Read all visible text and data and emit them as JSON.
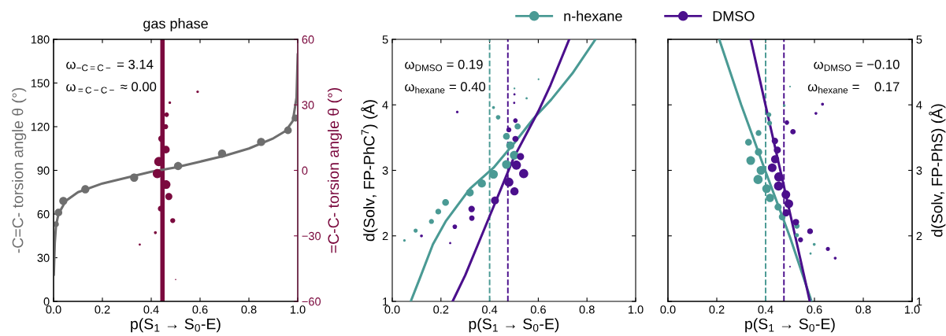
{
  "chart_data": [
    {
      "type": "bubble",
      "title": "gas phase",
      "xlabel": "p(S$_{1}$ → S$_{0}$-E)",
      "ylabel": "-C=C- torsion angle θ (°)",
      "y2label": "=C-C- torsion angle θ (°)",
      "annotations": [
        "ω$_{−C=C−}$ = 3.14",
        "ω$_{=C−C−}$ ≈ 0.00"
      ],
      "xlim": [
        0,
        1
      ],
      "xticks": [
        {
          "value": 0,
          "label": "0.0"
        },
        {
          "value": 0.2,
          "label": "0.2"
        },
        {
          "value": 0.4,
          "label": "0.4"
        },
        {
          "value": 0.6,
          "label": "0.6"
        },
        {
          "value": 0.8,
          "label": "0.8"
        },
        {
          "value": 1,
          "label": "1.0"
        }
      ],
      "ylim": [
        0,
        180
      ],
      "yticks": [
        0,
        30,
        60,
        90,
        120,
        150,
        180
      ],
      "y2lim": [
        -60,
        60
      ],
      "y2ticks": [
        {
          "value": -60,
          "label": "−60"
        },
        {
          "value": -30,
          "label": "−30"
        },
        0,
        30,
        60
      ],
      "ref_lines": [
        {
          "axis": "x",
          "value": 0.446,
          "color": "#7b0a3e",
          "line_style": "solid"
        }
      ],
      "series": [
        {
          "type": "line",
          "color": "#6e6e6e",
          "x": [
            0.001,
            0.005,
            0.01,
            0.02,
            0.05,
            0.1,
            0.2,
            0.3,
            0.4,
            0.5,
            0.6,
            0.7,
            0.8,
            0.9,
            0.95,
            0.98,
            0.995,
            1.0
          ],
          "values": [
            18,
            40,
            52,
            60,
            69,
            75,
            81,
            85,
            89,
            92,
            96,
            100,
            105,
            112,
            117,
            124,
            140,
            170
          ]
        },
        {
          "color": "#6e6e6e",
          "x": [
            0.01,
            0.02,
            0.04,
            0.13,
            0.33,
            0.51,
            0.69,
            0.85,
            0.96,
            0.99
          ],
          "values": [
            53,
            61,
            69,
            77,
            85,
            93,
            101.5,
            109.5,
            117.5,
            126
          ],
          "sizes": [
            0.4,
            0.7,
            0.8,
            0.8,
            0.8,
            0.8,
            0.8,
            0.8,
            0.7,
            0.6
          ]
        },
        {
          "axis": "y2",
          "color": "#7b0a3e",
          "x": [
            0.59,
            0.476,
            0.463,
            0.459,
            0.442,
            0.46,
            0.431,
            0.425,
            0.461,
            0.472,
            0.439,
            0.488,
            0.417,
            0.353,
            0.5
          ],
          "values": [
            36,
            31,
            25.5,
            20,
            14.5,
            9.5,
            4,
            -1.5,
            -6.5,
            -12,
            -17.5,
            -23,
            -28.5,
            -34,
            -50
          ],
          "sizes": [
            0.08,
            0.08,
            0.25,
            0.3,
            0.5,
            0.7,
            1,
            1,
            0.9,
            0.6,
            0.4,
            0.3,
            0.1,
            0.06,
            0.02
          ]
        }
      ]
    },
    {
      "type": "bubble",
      "xlabel": "p(S$_{1}$ → S$_{0}$-E)",
      "ylabel": "d(Solv, FP-PhC$^{7}$) (Å)",
      "annotations": [
        "ω$_{DMSO}$ = 0.19",
        "ω$_{hexane}$ = 0.40"
      ],
      "legend": "top",
      "xlim": [
        0,
        1
      ],
      "xticks": [
        {
          "value": 0,
          "label": "0.0"
        },
        {
          "value": 0.2,
          "label": "0.2"
        },
        {
          "value": 0.4,
          "label": "0.4"
        },
        {
          "value": 0.6,
          "label": "0.6"
        },
        {
          "value": 0.8,
          "label": "0.8"
        },
        {
          "value": 1,
          "label": "1.0"
        }
      ],
      "ylim": [
        1,
        5
      ],
      "yticks": [
        1,
        2,
        3,
        4,
        5
      ],
      "ref_lines": [
        {
          "axis": "x",
          "value": 0.4,
          "color": "#4a9a94",
          "line_style": "dashed"
        },
        {
          "axis": "x",
          "value": 0.475,
          "color": "#4b0f8c",
          "line_style": "dashed"
        }
      ],
      "series": [
        {
          "type": "line",
          "color": "#4a9a94",
          "x": [
            0.076,
            0.113,
            0.167,
            0.221,
            0.319,
            0.416,
            0.502,
            0.578,
            0.653,
            0.74,
            0.835
          ],
          "values": [
            1,
            1.35,
            1.87,
            2.23,
            2.72,
            3.04,
            3.42,
            3.78,
            4.08,
            4.48,
            5
          ]
        },
        {
          "type": "line",
          "color": "#4b0f8c",
          "x": [
            0.248,
            0.3,
            0.35,
            0.4,
            0.45,
            0.5,
            0.55,
            0.6,
            0.65,
            0.727
          ],
          "values": [
            1,
            1.4,
            1.85,
            2.3,
            2.75,
            3.2,
            3.55,
            3.9,
            4.3,
            5
          ]
        },
        {
          "name": "n-hexane",
          "color": "#4a9a94",
          "x": [
            0.05,
            0.096,
            0.161,
            0.189,
            0.219,
            0.319,
            0.368,
            0.416,
            0.469,
            0.501,
            0.485,
            0.469,
            0.515,
            0.435,
            0.416,
            0.552,
            0.502,
            0.601
          ],
          "values": [
            1.93,
            2.08,
            2.22,
            2.37,
            2.51,
            2.66,
            2.8,
            2.94,
            3.09,
            3.23,
            3.38,
            3.52,
            3.67,
            3.81,
            3.96,
            4.1,
            4.25,
            4.39
          ],
          "sizes": [
            0.08,
            0.2,
            0.3,
            0.4,
            0.55,
            0.7,
            0.8,
            0.9,
            0.9,
            0.9,
            0.8,
            0.55,
            0.45,
            0.25,
            0.1,
            0.06,
            0.04,
            0.04
          ]
        },
        {
          "name": "DMSO",
          "color": "#4b0f8c",
          "x": [
            0.12,
            0.238,
            0.257,
            0.327,
            0.326,
            0.422,
            0.502,
            0.479,
            0.54,
            0.51,
            0.527,
            0.506,
            0.479,
            0.506,
            0.501,
            0.502,
            0.267
          ],
          "values": [
            2.0,
            1.89,
            2.14,
            2.27,
            2.41,
            2.54,
            2.68,
            2.82,
            2.95,
            3.08,
            3.21,
            3.48,
            3.62,
            3.76,
            4.03,
            4.16,
            3.89
          ],
          "sizes": [
            0.1,
            0.06,
            0.25,
            0.35,
            0.5,
            0.75,
            0.8,
            1,
            1,
            1,
            0.6,
            0.45,
            0.3,
            0.25,
            0.06,
            0.06,
            0.08
          ]
        }
      ]
    },
    {
      "type": "bubble",
      "xlabel": "p(S$_{1}$ → S$_{0}$-E)",
      "y2label": "d(Solv, FP-PhS) (Å)",
      "annotations": [
        "ω$_{DMSO}$ = −0.10",
        "ω$_{hexane}$ =    0.17"
      ],
      "xlim": [
        0,
        1
      ],
      "xticks": [
        {
          "value": 0,
          "label": "0.0"
        },
        {
          "value": 0.2,
          "label": "0.2"
        },
        {
          "value": 0.4,
          "label": "0.4"
        },
        {
          "value": 0.6,
          "label": "0.6"
        },
        {
          "value": 0.8,
          "label": "0.8"
        },
        {
          "value": 1,
          "label": "1.0"
        }
      ],
      "y2lim": [
        1,
        5
      ],
      "y2ticks": [
        1,
        2,
        3,
        4,
        5
      ],
      "ref_lines": [
        {
          "axis": "x",
          "value": 0.4,
          "color": "#4a9a94",
          "line_style": "dashed"
        },
        {
          "axis": "x",
          "value": 0.475,
          "color": "#4b0f8c",
          "line_style": "dashed"
        }
      ],
      "series": [
        {
          "type": "line",
          "axis": "y2",
          "color": "#4a9a94",
          "x": [
            0.21,
            0.3,
            0.4,
            0.5,
            0.588
          ],
          "values": [
            5,
            4.0,
            2.98,
            1.98,
            1
          ]
        },
        {
          "type": "line",
          "axis": "y2",
          "color": "#4b0f8c",
          "x": [
            0.339,
            0.4,
            0.473,
            0.53,
            0.581
          ],
          "values": [
            5,
            3.99,
            2.79,
            1.85,
            1
          ]
        },
        {
          "axis": "y2",
          "color": "#4a9a94",
          "x": [
            0.5,
            0.476,
            0.414,
            0.416,
            0.371,
            0.33,
            0.371,
            0.339,
            0.381,
            0.369,
            0.404,
            0.418,
            0.451,
            0.468,
            0.528,
            0.528,
            0.599,
            0.584
          ],
          "values": [
            4.28,
            3.99,
            3.85,
            3.72,
            3.57,
            3.43,
            3.28,
            3.15,
            3.0,
            2.86,
            2.72,
            2.58,
            2.44,
            2.29,
            2.15,
            2.01,
            1.87,
            1.73
          ],
          "sizes": [
            0.03,
            0.08,
            0.25,
            0.3,
            0.4,
            0.55,
            0.65,
            0.9,
            0.9,
            1,
            0.9,
            0.8,
            0.6,
            0.55,
            0.35,
            0.2,
            0.1,
            0.06
          ]
        },
        {
          "axis": "y2",
          "color": "#4b0f8c",
          "x": [
            0.633,
            0.606,
            0.487,
            0.512,
            0.438,
            0.448,
            0.439,
            0.427,
            0.454,
            0.453,
            0.483,
            0.495,
            0.484,
            0.524,
            0.582,
            0.543,
            0.655,
            0.685,
            0.5
          ],
          "values": [
            4.01,
            3.87,
            3.73,
            3.59,
            3.45,
            3.31,
            3.17,
            3.04,
            2.9,
            2.76,
            2.63,
            2.49,
            2.35,
            2.21,
            2.07,
            1.94,
            1.8,
            1.66,
            1.53
          ],
          "sizes": [
            0.1,
            0.1,
            0.25,
            0.35,
            0.5,
            0.6,
            0.8,
            0.9,
            1,
            1,
            0.9,
            0.9,
            0.6,
            0.5,
            0.4,
            0.3,
            0.2,
            0.1,
            0.03
          ]
        }
      ]
    }
  ]
}
